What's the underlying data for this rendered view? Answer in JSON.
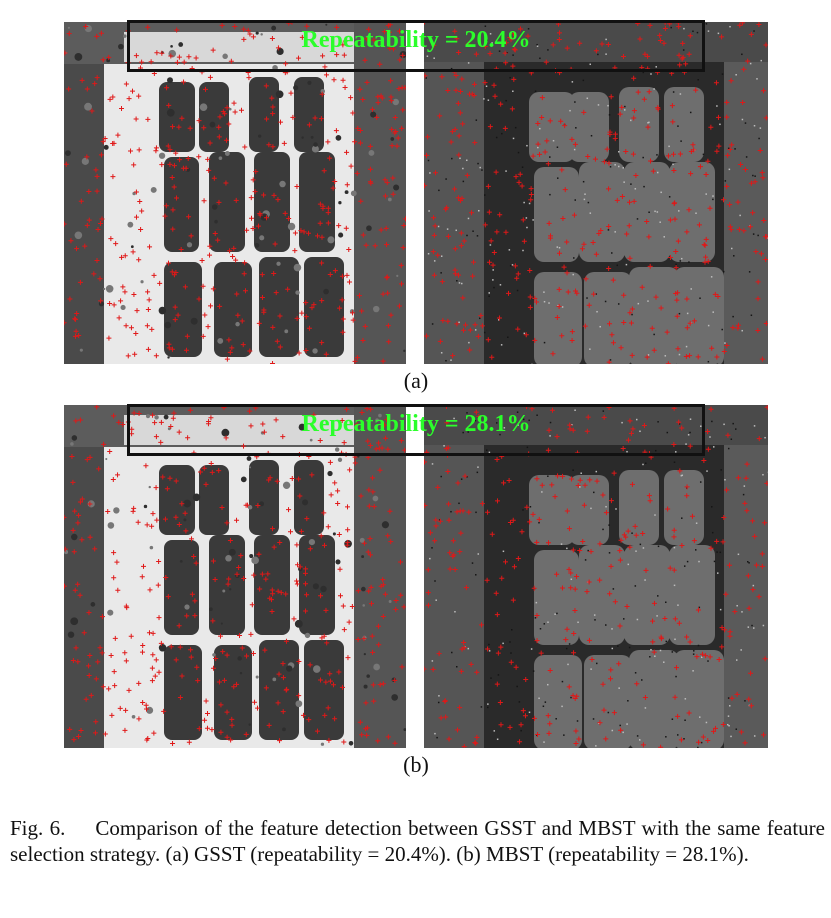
{
  "panels": [
    {
      "label": "(a)",
      "overlay_text": "Repeatability = 20.4%"
    },
    {
      "label": "(b)",
      "overlay_text": "Repeatability = 28.1%"
    }
  ],
  "caption": {
    "label": "Fig. 6.",
    "text": "Comparison of the feature detection between GSST and MBST with the same feature selection strategy. (a) GSST (repeatability = 20.4%). (b) MBST (repeatability = 28.1%)."
  },
  "colors": {
    "marker": "#e01818",
    "overlay_text": "#2bff2b",
    "overlay_box": "#111111"
  }
}
